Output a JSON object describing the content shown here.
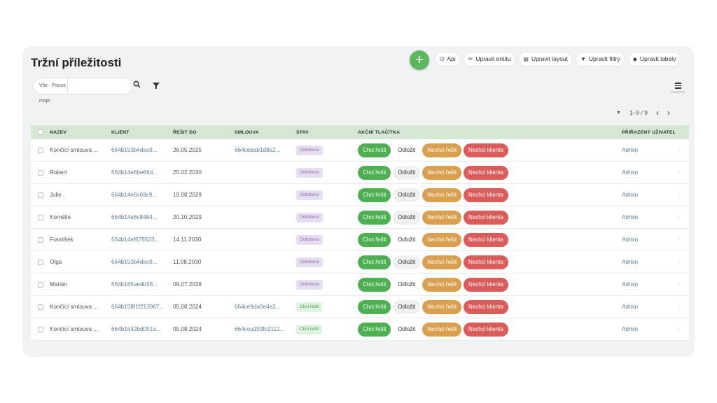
{
  "page_title": "Tržní příležitosti",
  "add_label": "+",
  "toolbar": [
    {
      "icon": "plug",
      "label": "Api"
    },
    {
      "icon": "tools",
      "label": "Upravit entitu"
    },
    {
      "icon": "layout",
      "label": "Upravit layout"
    },
    {
      "icon": "funnel",
      "label": "Upravit filtry"
    },
    {
      "icon": "tag",
      "label": "Upravit labely"
    }
  ],
  "filter": {
    "select_value": "Vše · Pouze moje ·",
    "search_value": ""
  },
  "pager": {
    "range": "1–9 / 9"
  },
  "columns": {
    "name": "NÁZEV",
    "client": "KLIENT",
    "due": "ŘEŠIT DO",
    "contract": "SMLOUVA",
    "status": "STAV",
    "actions": "AKČNÍ TLAČÍTKA",
    "user": "PŘIŘAZENÝ UŽIVATEL"
  },
  "action_labels": {
    "solve": "Chci řešit",
    "postpone": "Odložit",
    "no_solve": "Nechci řešit",
    "no_client": "Nechci klienta"
  },
  "rows": [
    {
      "name": "Končící smlouva ...",
      "client": "664b153b4dac9...",
      "due": "26.05.2025",
      "contract": "664cebab1d8a2...",
      "status": "Odloženo",
      "status_color": "purple",
      "postpone_style": "plain",
      "user": "Admin",
      "dash": "-"
    },
    {
      "name": "Robert",
      "client": "664b14e6be66d...",
      "due": "25.02.2030",
      "contract": "",
      "status": "Odloženo",
      "status_color": "purple",
      "postpone_style": "grey",
      "user": "Admin",
      "dash": "-"
    },
    {
      "name": "Julie .",
      "client": "664b14e6c69c9...",
      "due": "19.08.2029",
      "contract": "",
      "status": "Odloženo",
      "status_color": "purple",
      "postpone_style": "grey",
      "user": "Admin",
      "dash": "-"
    },
    {
      "name": "Kornélie",
      "client": "664b14e6c8484...",
      "due": "20.10.2029",
      "contract": "",
      "status": "Odloženo",
      "status_color": "purple",
      "postpone_style": "grey",
      "user": "Admin",
      "dash": "-"
    },
    {
      "name": "František",
      "client": "664b14ef675523...",
      "due": "14.11.2030",
      "contract": "",
      "status": "Odloženo",
      "status_color": "purple",
      "postpone_style": "plain",
      "user": "Admin",
      "dash": "-"
    },
    {
      "name": "Olga",
      "client": "664b153b4dac9...",
      "due": "11.08.2030",
      "contract": "",
      "status": "Odloženo",
      "status_color": "purple",
      "postpone_style": "grey",
      "user": "Admin",
      "dash": "-"
    },
    {
      "name": "Marián",
      "client": "664b185aedb58...",
      "due": "09.07.2028",
      "contract": "",
      "status": "Odloženo",
      "status_color": "purple",
      "postpone_style": "plain",
      "user": "Admin",
      "dash": "-"
    },
    {
      "name": "Končící smlouva ...",
      "client": "664b15f81f213967...",
      "due": "05.08.2024",
      "contract": "664ce9da5e4a3...",
      "status": "Chci řešit",
      "status_color": "green",
      "postpone_style": "grey",
      "user": "Admin",
      "dash": "-"
    },
    {
      "name": "Končící smlouva ...",
      "client": "664b1642bd051a...",
      "due": "05.08.2024",
      "contract": "664cea259fc2112...",
      "status": "Chci řešit",
      "status_color": "green",
      "postpone_style": "plain",
      "user": "Admin",
      "dash": "-"
    }
  ]
}
